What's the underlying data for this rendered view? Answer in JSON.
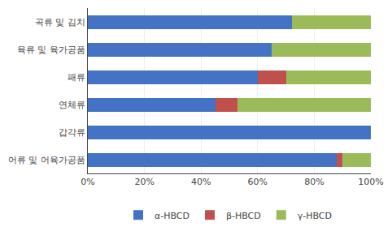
{
  "chart_data": {
    "type": "bar",
    "orientation": "horizontal",
    "stacked": true,
    "categories": [
      "어류 및 어육가공품",
      "갑각류",
      "연체류",
      "패류",
      "육류 및 육가공품",
      "곡류 및 김치"
    ],
    "series": [
      {
        "name": "α-HBCD",
        "color": "#4472C4",
        "values": [
          88,
          100,
          45,
          60,
          65,
          72
        ]
      },
      {
        "name": "β-HBCD",
        "color": "#C0504D",
        "values": [
          2,
          0,
          8,
          10,
          0,
          0
        ]
      },
      {
        "name": "γ-HBCD",
        "color": "#9BBB59",
        "values": [
          10,
          0,
          47,
          30,
          35,
          28
        ]
      }
    ],
    "xlim": [
      0,
      100
    ],
    "xticks": [
      {
        "value": 0,
        "label": "0%"
      },
      {
        "value": 20,
        "label": "20%"
      },
      {
        "value": 40,
        "label": "40%"
      },
      {
        "value": 60,
        "label": "60%"
      },
      {
        "value": 80,
        "label": "80%"
      },
      {
        "value": 100,
        "label": "100%"
      }
    ],
    "grid": true,
    "legend": "bottom"
  }
}
